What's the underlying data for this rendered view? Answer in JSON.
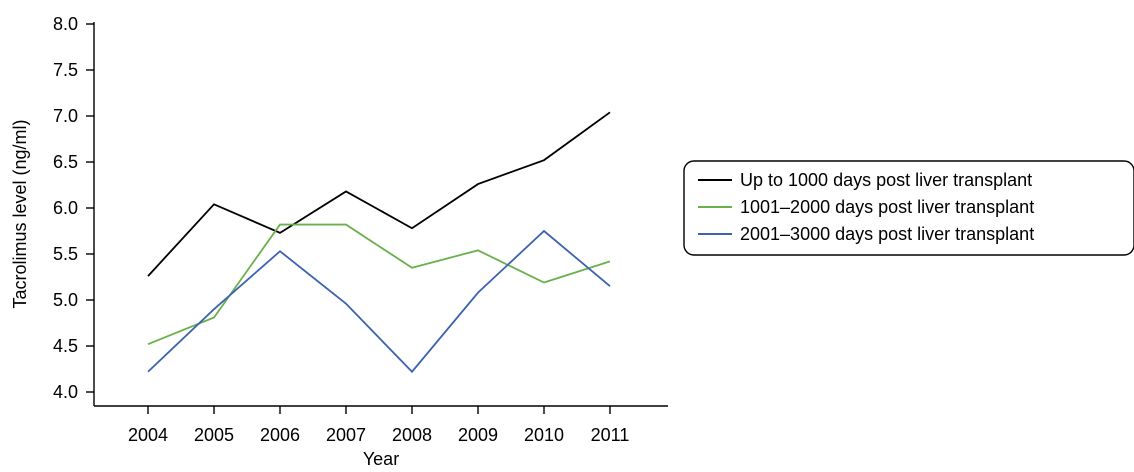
{
  "chart_data": {
    "type": "line",
    "title": "",
    "xlabel": "Year",
    "ylabel": "Tacrolimus level (ng/ml)",
    "categories": [
      "2004",
      "2005",
      "2006",
      "2007",
      "2008",
      "2009",
      "2010",
      "2011"
    ],
    "ylim": [
      4.0,
      8.0
    ],
    "yticks": [
      "4.0",
      "4.5",
      "5.0",
      "5.5",
      "6.0",
      "6.5",
      "7.0",
      "7.5",
      "8.0"
    ],
    "grid": false,
    "legend_position": "right",
    "series": [
      {
        "name": "Up to 1000 days post liver transplant",
        "color": "#000000",
        "values": [
          5.26,
          6.04,
          5.73,
          6.18,
          5.78,
          6.26,
          6.52,
          7.04
        ]
      },
      {
        "name": "1001–2000 days post liver transplant",
        "color": "#6ab04c",
        "values": [
          4.52,
          4.81,
          5.82,
          5.82,
          5.35,
          5.54,
          5.19,
          5.42
        ]
      },
      {
        "name": "2001–3000 days post liver transplant",
        "color": "#3d62b0",
        "values": [
          4.22,
          4.9,
          5.53,
          4.96,
          4.22,
          5.08,
          5.75,
          5.15
        ]
      }
    ]
  }
}
